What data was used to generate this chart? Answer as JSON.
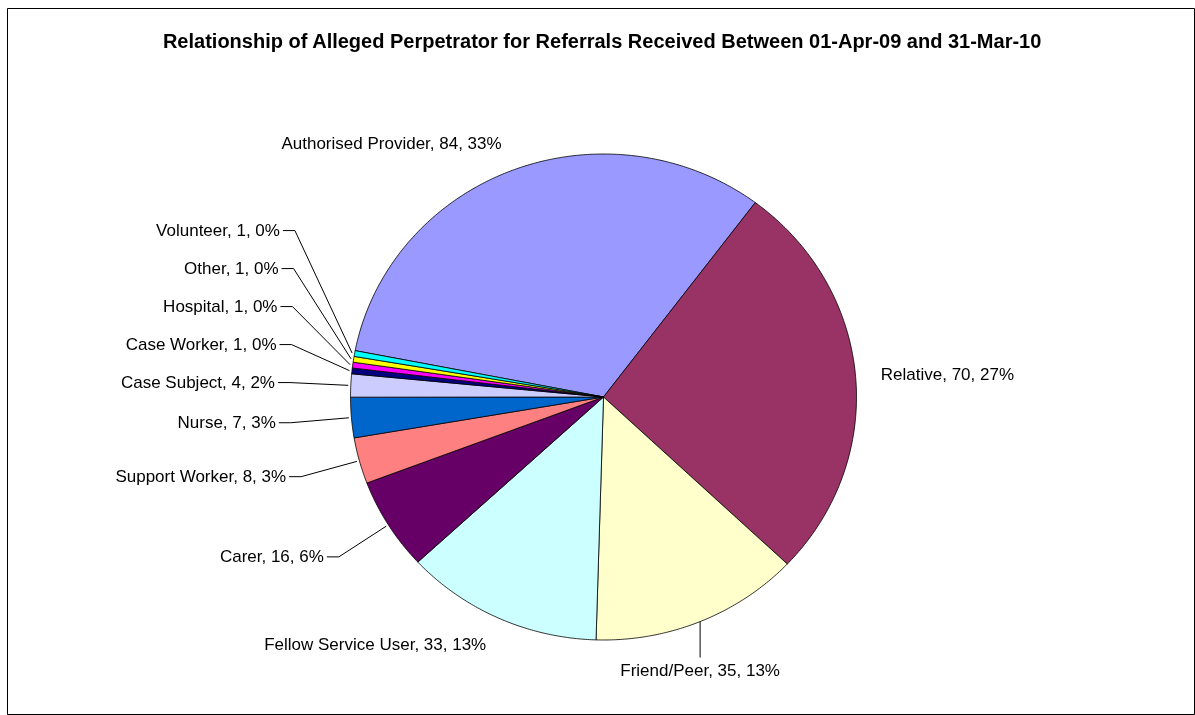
{
  "chart_data": {
    "type": "pie",
    "title": "Relationship of Alleged Perpetrator for Referrals Received Between 01-Apr-09 and 31-Mar-10",
    "categories": [
      "Authorised Provider",
      "Relative",
      "Friend/Peer",
      "Fellow Service User",
      "Carer",
      "Support Worker",
      "Nurse",
      "Case Subject",
      "Case Worker",
      "Hospital",
      "Other",
      "Volunteer"
    ],
    "values": [
      84,
      70,
      35,
      33,
      16,
      8,
      7,
      4,
      1,
      1,
      1,
      1
    ],
    "colors": [
      "#9999ff",
      "#993366",
      "#ffffcc",
      "#ccffff",
      "#660066",
      "#ff8080",
      "#0066cc",
      "#ccccff",
      "#000080",
      "#ff00ff",
      "#ffff00",
      "#00ffff"
    ],
    "value_labels": [
      "84, 33%",
      "70, 27%",
      "35, 13%",
      "33, 13%",
      "16, 6%",
      "8, 3%",
      "7, 3%",
      "4, 2%",
      "1, 0%",
      "1, 0%",
      "1, 0%",
      "1, 0%"
    ]
  }
}
